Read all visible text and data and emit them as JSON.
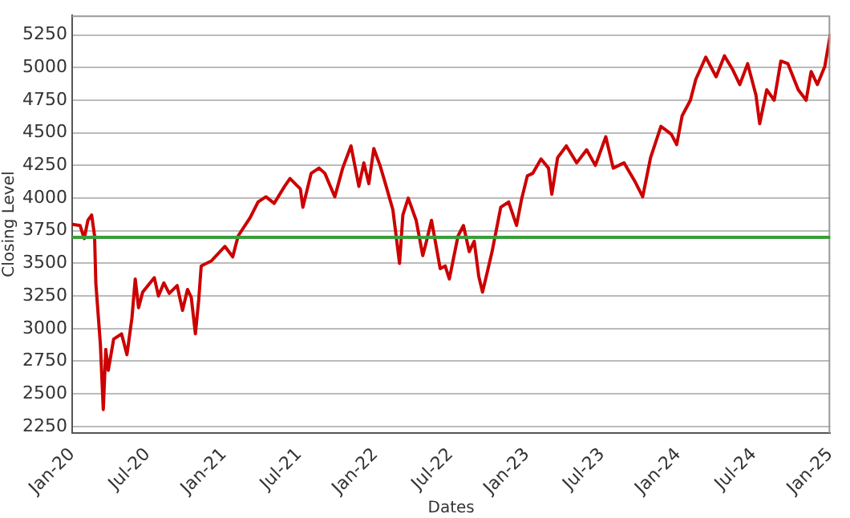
{
  "chart_data": {
    "type": "line",
    "xlabel": "Dates",
    "ylabel": "Closing Level",
    "xlim": [
      "2020-01-01",
      "2025-01-01"
    ],
    "xticks": [
      {
        "value": "2020-01-01",
        "label": "Jan-20"
      },
      {
        "value": "2020-07-01",
        "label": "Jul-20"
      },
      {
        "value": "2021-01-01",
        "label": "Jan-21"
      },
      {
        "value": "2021-07-01",
        "label": "Jul-21"
      },
      {
        "value": "2022-01-01",
        "label": "Jan-22"
      },
      {
        "value": "2022-07-01",
        "label": "Jul-22"
      },
      {
        "value": "2023-01-01",
        "label": "Jan-23"
      },
      {
        "value": "2023-07-01",
        "label": "Jul-23"
      },
      {
        "value": "2024-01-01",
        "label": "Jan-24"
      },
      {
        "value": "2024-07-01",
        "label": "Jul-24"
      },
      {
        "value": "2025-01-01",
        "label": "Jan-25"
      }
    ],
    "ylim": [
      2200,
      5400
    ],
    "yticks": [
      2250,
      2500,
      2750,
      3000,
      3250,
      3500,
      3750,
      4000,
      4250,
      4500,
      4750,
      5000,
      5250
    ],
    "grid": "y",
    "marker": "none",
    "line_style": "solid",
    "ref_lines": [
      {
        "axis": "y",
        "value": 3700,
        "color": "#3a9e3a"
      }
    ],
    "series": [
      {
        "color": "#cc0000",
        "x": [
          "2020-01-01",
          "2020-01-20",
          "2020-01-30",
          "2020-02-08",
          "2020-02-17",
          "2020-02-24",
          "2020-02-27",
          "2020-03-09",
          "2020-03-16",
          "2020-03-22",
          "2020-03-28",
          "2020-04-10",
          "2020-04-29",
          "2020-05-12",
          "2020-05-24",
          "2020-06-01",
          "2020-06-09",
          "2020-06-19",
          "2020-07-17",
          "2020-07-27",
          "2020-08-09",
          "2020-08-22",
          "2020-09-10",
          "2020-09-23",
          "2020-10-05",
          "2020-10-14",
          "2020-10-24",
          "2020-11-01",
          "2020-11-07",
          "2020-12-02",
          "2021-01-03",
          "2021-01-22",
          "2021-02-04",
          "2021-03-05",
          "2021-03-24",
          "2021-04-12",
          "2021-05-02",
          "2021-05-27",
          "2021-06-09",
          "2021-07-04",
          "2021-07-10",
          "2021-07-30",
          "2021-08-18",
          "2021-09-01",
          "2021-09-25",
          "2021-10-14",
          "2021-11-03",
          "2021-11-22",
          "2021-12-04",
          "2021-12-16",
          "2021-12-28",
          "2022-01-12",
          "2022-01-25",
          "2022-02-12",
          "2022-02-28",
          "2022-03-08",
          "2022-03-21",
          "2022-04-09",
          "2022-04-25",
          "2022-05-04",
          "2022-05-16",
          "2022-06-06",
          "2022-06-18",
          "2022-06-28",
          "2022-07-19",
          "2022-08-01",
          "2022-08-15",
          "2022-08-27",
          "2022-09-07",
          "2022-09-16",
          "2022-09-28",
          "2022-10-09",
          "2022-10-30",
          "2022-11-18",
          "2022-12-07",
          "2022-12-19",
          "2023-01-02",
          "2023-01-15",
          "2023-02-04",
          "2023-02-22",
          "2023-03-02",
          "2023-03-16",
          "2023-04-06",
          "2023-05-01",
          "2023-05-25",
          "2023-06-15",
          "2023-07-10",
          "2023-07-28",
          "2023-08-23",
          "2023-09-18",
          "2023-10-07",
          "2023-10-26",
          "2023-11-20",
          "2023-12-15",
          "2023-12-28",
          "2024-01-10",
          "2024-01-30",
          "2024-02-12",
          "2024-03-07",
          "2024-04-01",
          "2024-04-21",
          "2024-05-10",
          "2024-05-28",
          "2024-06-16",
          "2024-07-06",
          "2024-07-15",
          "2024-08-01",
          "2024-08-19",
          "2024-09-04",
          "2024-09-21",
          "2024-10-16",
          "2024-11-04",
          "2024-11-16",
          "2024-12-01",
          "2024-12-19",
          "2025-01-01"
        ],
        "values": [
          3800,
          3790,
          3690,
          3830,
          3870,
          3710,
          3350,
          2880,
          2380,
          2840,
          2680,
          2920,
          2960,
          2800,
          3080,
          3380,
          3160,
          3280,
          3390,
          3250,
          3350,
          3270,
          3330,
          3140,
          3300,
          3240,
          2960,
          3220,
          3480,
          3520,
          3630,
          3550,
          3710,
          3850,
          3970,
          4010,
          3960,
          4090,
          4150,
          4070,
          3930,
          4190,
          4230,
          4190,
          4010,
          4230,
          4400,
          4090,
          4270,
          4110,
          4380,
          4250,
          4110,
          3910,
          3500,
          3870,
          4000,
          3830,
          3560,
          3670,
          3830,
          3460,
          3480,
          3380,
          3710,
          3790,
          3590,
          3670,
          3400,
          3280,
          3440,
          3590,
          3930,
          3970,
          3790,
          3990,
          4170,
          4190,
          4300,
          4230,
          4030,
          4310,
          4400,
          4270,
          4370,
          4250,
          4470,
          4230,
          4270,
          4130,
          4010,
          4310,
          4550,
          4490,
          4410,
          4630,
          4750,
          4910,
          5080,
          4930,
          5090,
          4990,
          4870,
          5030,
          4790,
          4570,
          4830,
          4750,
          5050,
          5030,
          4830,
          4750,
          4970,
          4870,
          5010,
          5250
        ]
      }
    ]
  }
}
